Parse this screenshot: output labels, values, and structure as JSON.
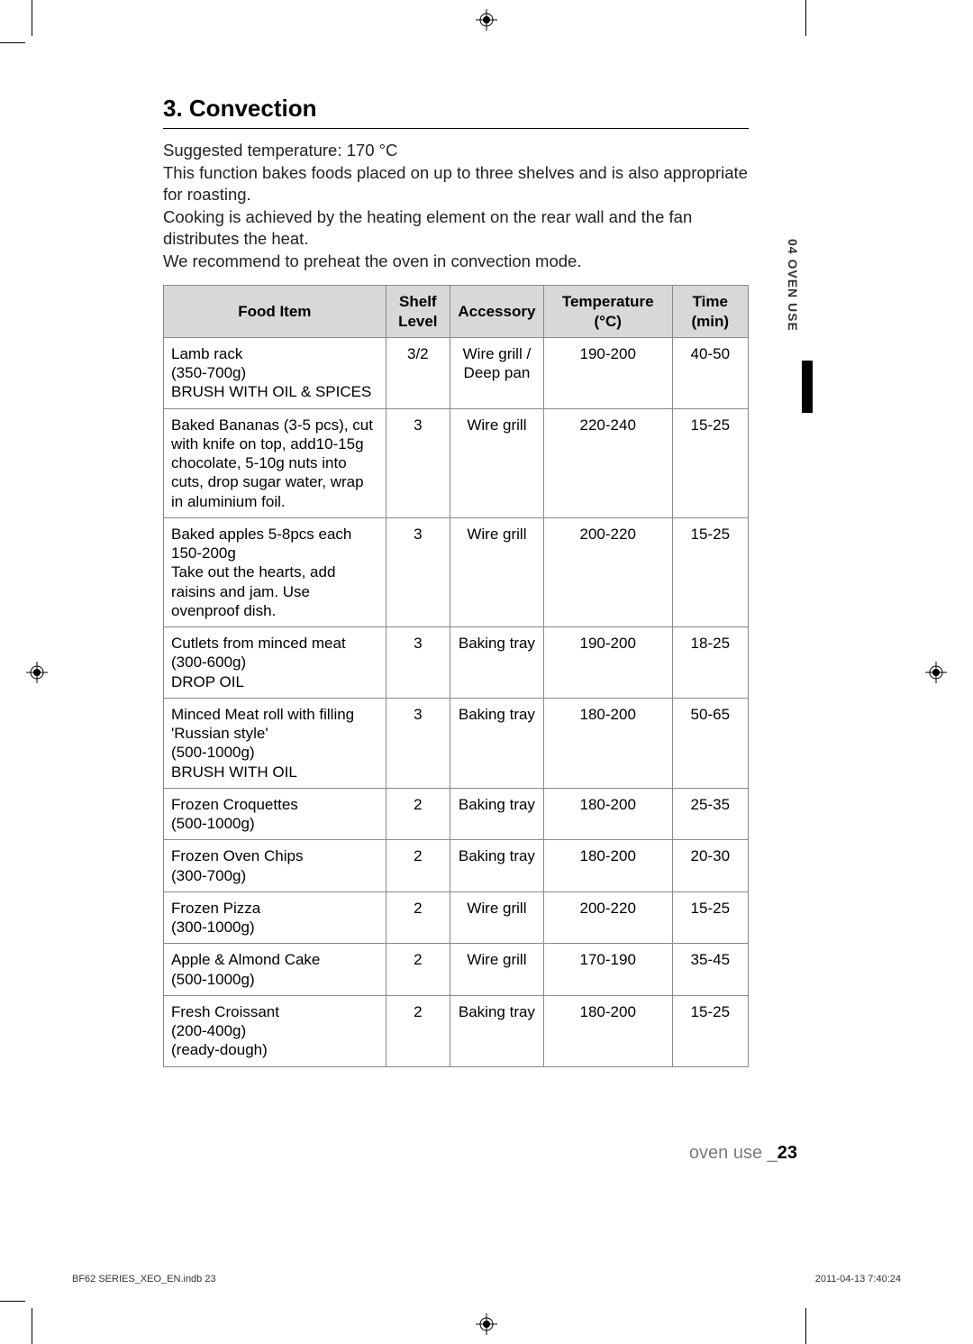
{
  "section": {
    "title": "3. Convection",
    "intro": [
      "Suggested temperature: 170 °C",
      "This function bakes foods placed on up to three shelves and is also appropriate for roasting.",
      "Cooking is achieved by the heating element on the rear wall and the fan distributes the heat.",
      "We recommend to preheat the oven in convection mode."
    ]
  },
  "table": {
    "columns": [
      "Food Item",
      "Shelf Level",
      "Accessory",
      "Temperature (°C)",
      "Time (min)"
    ],
    "rows": [
      [
        "Lamb rack\n(350-700g)\nBRUSH WITH OIL & SPICES",
        "3/2",
        "Wire grill / Deep pan",
        "190-200",
        "40-50"
      ],
      [
        "Baked Bananas (3-5 pcs), cut with knife on top, add10-15g chocolate, 5-10g nuts into cuts, drop sugar water, wrap in aluminium foil.",
        "3",
        "Wire grill",
        "220-240",
        "15-25"
      ],
      [
        "Baked apples 5-8pcs each 150-200g\nTake out the hearts, add raisins and jam. Use ovenproof dish.",
        "3",
        "Wire grill",
        "200-220",
        "15-25"
      ],
      [
        "Cutlets from minced meat\n(300-600g)\nDROP OIL",
        "3",
        "Baking tray",
        "190-200",
        "18-25"
      ],
      [
        "Minced Meat roll with filling 'Russian style'\n(500-1000g)\nBRUSH WITH OIL",
        "3",
        "Baking tray",
        "180-200",
        "50-65"
      ],
      [
        "Frozen Croquettes\n(500-1000g)",
        "2",
        "Baking tray",
        "180-200",
        "25-35"
      ],
      [
        "Frozen Oven Chips\n(300-700g)",
        "2",
        "Baking tray",
        "180-200",
        "20-30"
      ],
      [
        "Frozen Pizza\n(300-1000g)",
        "2",
        "Wire grill",
        "200-220",
        "15-25"
      ],
      [
        "Apple & Almond Cake\n(500-1000g)",
        "2",
        "Wire grill",
        "170-190",
        "35-45"
      ],
      [
        "Fresh Croissant\n(200-400g)\n(ready-dough)",
        "2",
        "Baking tray",
        "180-200",
        "15-25"
      ]
    ],
    "col_widths": [
      "38%",
      "11%",
      "16%",
      "22%",
      "13%"
    ]
  },
  "sidebar": {
    "label": "04 OVEN USE"
  },
  "footer": {
    "section": "oven use _",
    "page": "23",
    "slug_file": "BF62 SERIES_XEO_EN.indb   23",
    "slug_date": "2011-04-13    7:40:24"
  }
}
